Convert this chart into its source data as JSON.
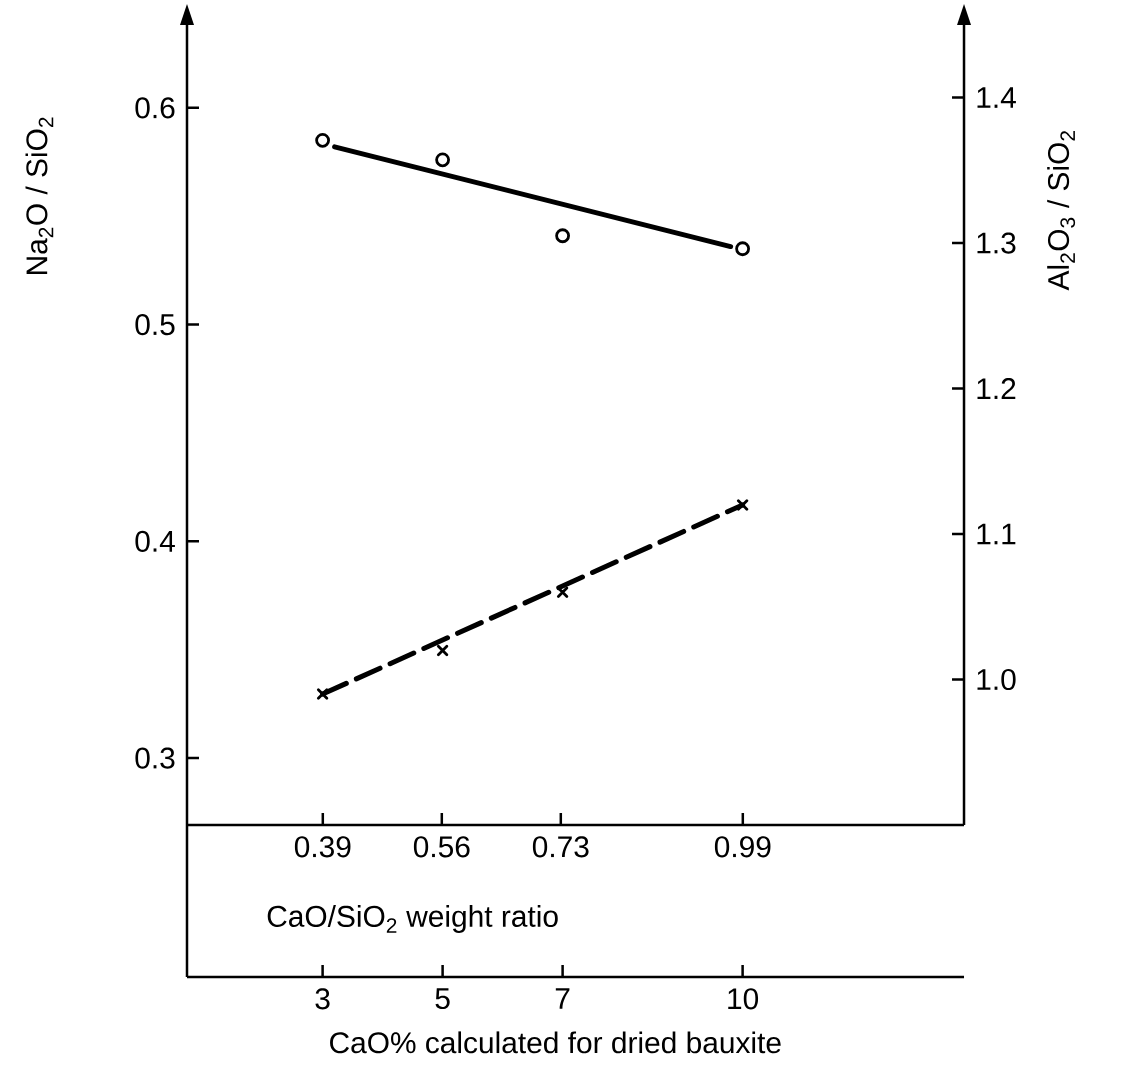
{
  "chart_data": {
    "type": "scatter",
    "xlabel": "CaO% calculated for dried bauxite",
    "x2label": "CaO/SiO$_{2}$  weight ratio",
    "ylabel": "Na$_{2}$O / SiO$_{2}$",
    "y2label": "Al$_{2}$O$_{3}$ / SiO$_{2}$",
    "xlim": [
      0.74,
      13.69
    ],
    "xticks": [
      3,
      5,
      7,
      10
    ],
    "x2lim": [
      0.196,
      1.306
    ],
    "x2ticks": [
      0.39,
      0.56,
      0.73,
      0.99
    ],
    "ylim": [
      0.199,
      0.641
    ],
    "yticks": [
      0.3,
      0.4,
      0.5,
      0.6
    ],
    "y2lim": [
      0.9,
      1.454
    ],
    "y2ticks": [
      {
        "value": 1.0,
        "label": "1.0"
      },
      1.1,
      1.2,
      1.3,
      1.4
    ],
    "series": [
      {
        "marker": "circle",
        "color": "#000000",
        "x": [
          3,
          5,
          7,
          10
        ],
        "values": [
          0.585,
          0.576,
          0.541,
          0.535
        ]
      },
      {
        "type": "line",
        "marker": "none",
        "line_style": "solid",
        "color": "#000000",
        "x": [
          3.2,
          9.8
        ],
        "values": [
          0.582,
          0.536
        ]
      },
      {
        "marker": "cross",
        "axis": "y2",
        "color": "#000000",
        "x": [
          3,
          5,
          7,
          10
        ],
        "values": [
          0.99,
          1.02,
          1.06,
          1.12
        ]
      },
      {
        "type": "line",
        "marker": "none",
        "line_style": "dashed",
        "axis": "y2",
        "color": "#000000",
        "x": [
          3,
          10
        ],
        "values": [
          0.99,
          1.12
        ]
      }
    ]
  }
}
